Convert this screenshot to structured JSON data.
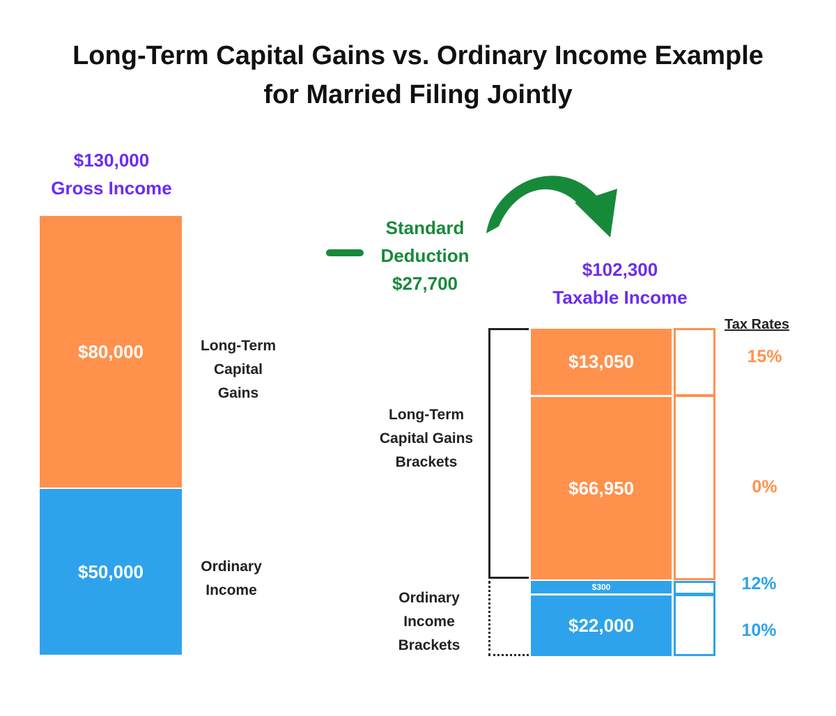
{
  "title": {
    "line1": "Long-Term Capital Gains vs. Ordinary Income Example",
    "line2": "for Married Filing Jointly"
  },
  "gross": {
    "amount": "$130,000",
    "label": "Gross Income",
    "ltcg_value": "$80,000",
    "ltcg_label": [
      "Long-Term",
      "Capital",
      "Gains"
    ],
    "ordinary_value": "$50,000",
    "ordinary_label": [
      "Ordinary",
      "Income"
    ]
  },
  "deduction": {
    "sign": "−",
    "lines": [
      "Standard",
      "Deduction",
      "$27,700"
    ]
  },
  "taxable": {
    "amount": "$102,300",
    "label": "Taxable Income",
    "tax_rates_header": "Tax Rates",
    "ltcg_brackets_label": [
      "Long-Term",
      "Capital Gains",
      "Brackets"
    ],
    "ordinary_brackets_label": [
      "Ordinary",
      "Income",
      "Brackets"
    ],
    "segments": [
      {
        "value": "$13,050",
        "rate": "15%",
        "amount": 13050,
        "color": "#ff914d"
      },
      {
        "value": "$66,950",
        "rate": "0%",
        "amount": 66950,
        "color": "#ff914d"
      },
      {
        "value": "$300",
        "rate": "12%",
        "amount": 300,
        "color": "#2ea3ec"
      },
      {
        "value": "$22,000",
        "rate": "10%",
        "amount": 22000,
        "color": "#2ea3ec"
      }
    ]
  },
  "colors": {
    "orange": "#ff914d",
    "blue": "#2ea3ec",
    "purple": "#6b2df0",
    "green": "#178a3a"
  }
}
